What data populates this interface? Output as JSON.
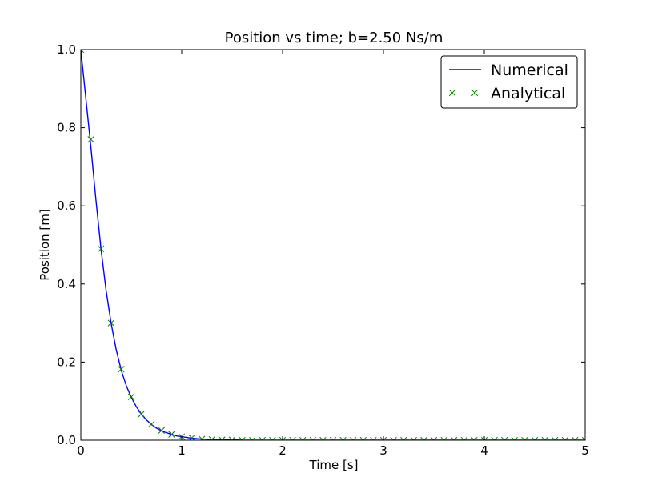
{
  "chart_data": {
    "type": "line",
    "title": "Position vs time; b=2.50 Ns/m",
    "xlabel": "Time [s]",
    "ylabel": "Position [m]",
    "xlim": [
      0,
      5
    ],
    "ylim": [
      0,
      1
    ],
    "xticks": [
      "0",
      "1",
      "2",
      "3",
      "4",
      "5"
    ],
    "yticks": [
      "0.0",
      "0.2",
      "0.4",
      "0.6",
      "0.8",
      "1.0"
    ],
    "grid": false,
    "legend_position": "top-right",
    "series": [
      {
        "name": "Numerical",
        "style": "line",
        "color": "#0000ff",
        "x": [
          0.0,
          0.05,
          0.1,
          0.15,
          0.2,
          0.25,
          0.3,
          0.35,
          0.4,
          0.45,
          0.5,
          0.55,
          0.6,
          0.65,
          0.7,
          0.75,
          0.8,
          0.85,
          0.9,
          0.95,
          1.0,
          1.1,
          1.2,
          1.3,
          1.4,
          1.5,
          1.6,
          1.8,
          2.0,
          2.5,
          3.0,
          3.5,
          4.0,
          4.5,
          5.0
        ],
        "y": [
          1.0,
          0.875,
          0.75,
          0.615,
          0.49,
          0.385,
          0.3,
          0.233,
          0.18,
          0.14,
          0.11,
          0.086,
          0.067,
          0.052,
          0.04,
          0.031,
          0.024,
          0.019,
          0.015,
          0.011,
          0.009,
          0.005,
          0.003,
          0.002,
          0.001,
          0.001,
          0.0,
          0.0,
          0.0,
          0.0,
          0.0,
          0.0,
          0.0,
          0.0,
          0.0
        ]
      },
      {
        "name": "Analytical",
        "style": "markers",
        "marker": "x",
        "color": "#008000",
        "x": [
          0.0,
          0.1,
          0.2,
          0.3,
          0.4,
          0.5,
          0.6,
          0.7,
          0.8,
          0.9,
          1.0,
          1.1,
          1.2,
          1.3,
          1.4,
          1.5,
          1.6,
          1.7,
          1.8,
          1.9,
          2.0,
          2.1,
          2.2,
          2.3,
          2.4,
          2.5,
          2.6,
          2.7,
          2.8,
          2.9,
          3.0,
          3.1,
          3.2,
          3.3,
          3.4,
          3.5,
          3.6,
          3.7,
          3.8,
          3.9,
          4.0,
          4.1,
          4.2,
          4.3,
          4.4,
          4.5,
          4.6,
          4.7,
          4.8,
          4.9,
          5.0
        ],
        "y": [
          1.0,
          0.77,
          0.49,
          0.3,
          0.182,
          0.111,
          0.067,
          0.041,
          0.025,
          0.015,
          0.009,
          0.006,
          0.003,
          0.002,
          0.001,
          0.001,
          0.0,
          0.0,
          0.0,
          0.0,
          0.0,
          0.0,
          0.0,
          0.0,
          0.0,
          0.0,
          0.0,
          0.0,
          0.0,
          0.0,
          0.0,
          0.0,
          0.0,
          0.0,
          0.0,
          0.0,
          0.0,
          0.0,
          0.0,
          0.0,
          0.0,
          0.0,
          0.0,
          0.0,
          0.0,
          0.0,
          0.0,
          0.0,
          0.0,
          0.0,
          0.0
        ]
      }
    ]
  }
}
